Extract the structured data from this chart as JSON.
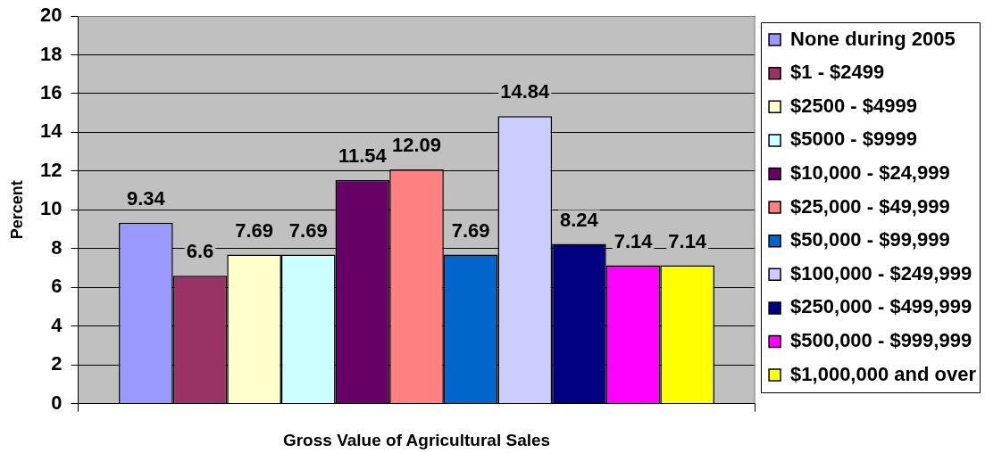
{
  "chart_data": {
    "type": "bar",
    "xlabel": "Gross Value of Agricultural Sales",
    "ylabel": "Percent",
    "categories": [
      null
    ],
    "series": [
      {
        "name": "None during 2005",
        "color": "#9999ff",
        "values": [
          9.34
        ]
      },
      {
        "name": "$1 - $2499",
        "color": "#993366",
        "values": [
          6.6
        ]
      },
      {
        "name": "$2500 - $4999",
        "color": "#ffffcc",
        "values": [
          7.69
        ]
      },
      {
        "name": "$5000 - $9999",
        "color": "#ccffff",
        "values": [
          7.69
        ]
      },
      {
        "name": "$10,000 - $24,999",
        "color": "#660066",
        "values": [
          11.54
        ]
      },
      {
        "name": "$25,000 - $49,999",
        "color": "#ff8080",
        "values": [
          12.09
        ]
      },
      {
        "name": "$50,000 - $99,999",
        "color": "#0066cc",
        "values": [
          7.69
        ]
      },
      {
        "name": "$100,000 - $249,999",
        "color": "#ccccff",
        "values": [
          14.84
        ]
      },
      {
        "name": "$250,000 - $499,999",
        "color": "#000080",
        "values": [
          8.24
        ]
      },
      {
        "name": "$500,000 - $999,999",
        "color": "#ff00ff",
        "values": [
          7.14
        ]
      },
      {
        "name": "$1,000,000 and over",
        "color": "#ffff00",
        "values": [
          7.14
        ]
      }
    ],
    "ylim": [
      0,
      20
    ],
    "yticks": [
      0,
      2,
      4,
      6,
      8,
      10,
      12,
      14,
      16,
      18,
      20
    ],
    "grid": "y",
    "legend": "right",
    "data_labels": true
  }
}
